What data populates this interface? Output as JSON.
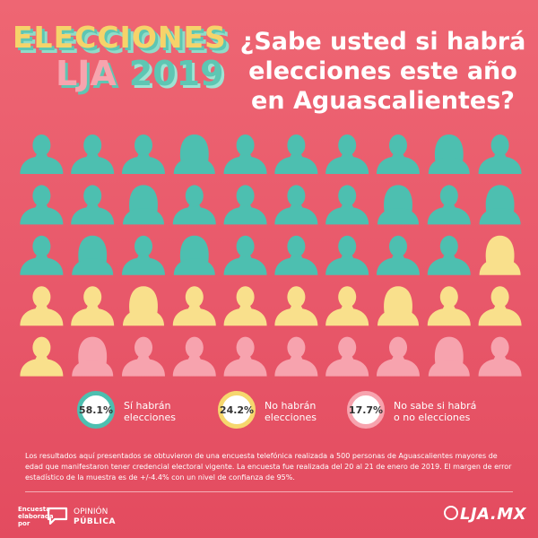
{
  "brand": {
    "word": "ELECCIONES",
    "lja": "LJA",
    "year": "2019"
  },
  "title_lines": [
    "¿Sabe usted si habrá",
    "elecciones este año",
    "en Aguascalientes?"
  ],
  "chart_data": {
    "type": "pictogram",
    "title": "¿Sabe usted si habrá elecciones este año en Aguascalientes?",
    "rows": 5,
    "cols": 10,
    "categories": [
      "Sí habrán elecciones",
      "No habrán elecciones",
      "No sabe si habrá o no elecciones"
    ],
    "values": [
      58.1,
      24.2,
      17.7
    ],
    "units": "%",
    "icon_counts": [
      29,
      12,
      9
    ],
    "colors": [
      "#4dbfb0",
      "#f9e08c",
      "#f7a3ae"
    ],
    "figures": [
      "m",
      "m",
      "m",
      "f",
      "m",
      "m",
      "m",
      "m",
      "f",
      "m",
      "m",
      "m",
      "f",
      "m",
      "m",
      "m",
      "m",
      "f",
      "m",
      "f",
      "m",
      "f",
      "m",
      "f",
      "m",
      "m",
      "m",
      "m",
      "m",
      "f",
      "m",
      "m",
      "f",
      "m",
      "m",
      "m",
      "m",
      "f",
      "m",
      "m",
      "m",
      "f",
      "m",
      "m",
      "m",
      "m",
      "m",
      "m",
      "f",
      "m"
    ]
  },
  "legend": [
    {
      "value": "58.1%",
      "line1": "Sí habrán",
      "line2": "elecciones",
      "ring_color": "#4dbfb0"
    },
    {
      "value": "24.2%",
      "line1": "No habrán",
      "line2": "elecciones",
      "ring_color": "#f6d76e"
    },
    {
      "value": "17.7%",
      "line1": "No sabe si habrá",
      "line2": "o no elecciones",
      "ring_color": "#f7a3ae"
    }
  ],
  "footnote": "Los resultados aquí presentados se obtuvieron de una encuesta telefónica realizada a 500 personas de Aguascalientes mayores de edad que manifestaron tener credencial electoral vigente. La encuesta fue realizada del 20 al 21 de enero de 2019. El margen de error estadístico de la muestra es de +/-4.4% con un nivel de confianza de 95%.",
  "credit": {
    "line1": "Encuesta",
    "line2": "elaborada",
    "line3": "por"
  },
  "opinion_logo": {
    "line1": "OPINIÓN",
    "line2": "PÚBLICA",
    "icon": "speech-bubble-icon"
  },
  "site_logo": {
    "text": "LJA.MX",
    "icon": "lja-circle-icon"
  }
}
